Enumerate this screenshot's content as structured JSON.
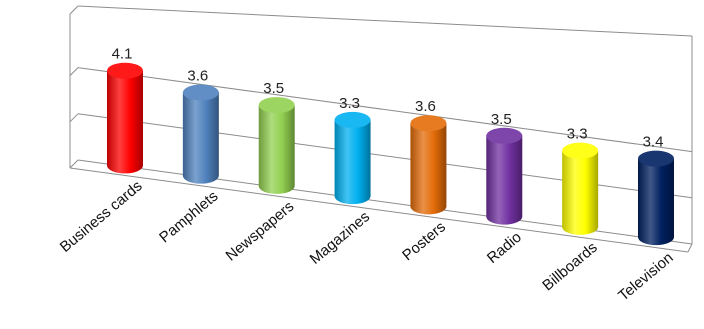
{
  "chart_data": {
    "type": "bar",
    "style": "3d-cylinder",
    "categories": [
      "Business cards",
      "Pamphlets",
      "Newspapers",
      "Magazines",
      "Posters",
      "Radio",
      "Billboards",
      "Television"
    ],
    "values": [
      4.1,
      3.6,
      3.5,
      3.3,
      3.6,
      3.5,
      3.3,
      3.4
    ],
    "value_labels": [
      "4.1",
      "3.6",
      "3.5",
      "3.3",
      "3.6",
      "3.5",
      "3.3",
      "3.4"
    ],
    "colors": [
      "#ff0000",
      "#4f81bd",
      "#92d050",
      "#00b0f0",
      "#e36c09",
      "#7030a0",
      "#ffff00",
      "#002060"
    ],
    "title": "",
    "xlabel": "",
    "ylabel": "",
    "ylim": [
      0,
      5
    ],
    "grid": true,
    "legend": "none"
  }
}
